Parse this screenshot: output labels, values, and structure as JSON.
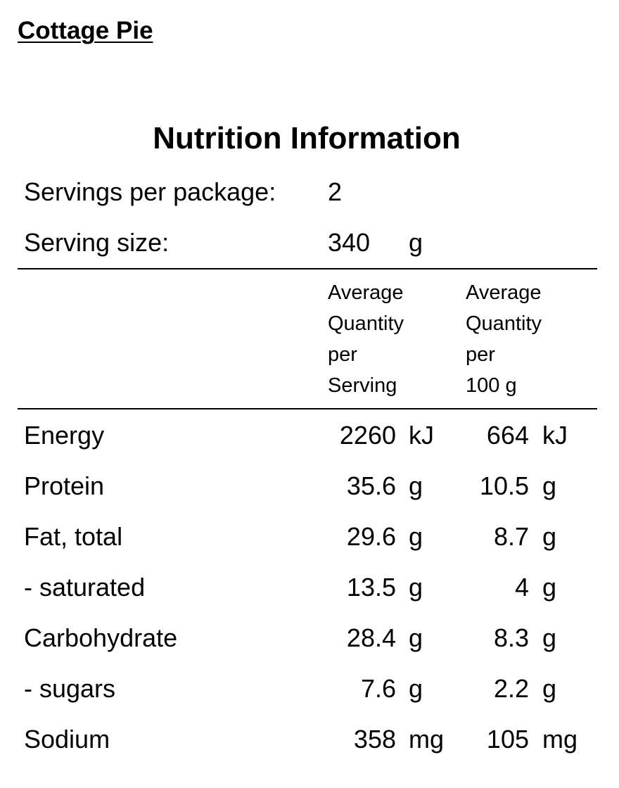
{
  "product_title": "Cottage Pie",
  "panel_title": "Nutrition Information",
  "servings": {
    "servings_label": "Servings per package:",
    "servings_value": "2",
    "size_label": "Serving size:",
    "size_value": "340",
    "size_unit": "g"
  },
  "columns": {
    "per_serving": [
      "Average",
      "Quantity",
      "per",
      "Serving"
    ],
    "per_100g": [
      "Average",
      "Quantity",
      "per",
      "100 g"
    ]
  },
  "rows": [
    {
      "name": "Energy",
      "per_serving": "2260",
      "per_serving_unit": "kJ",
      "per_100g": "664",
      "per_100g_unit": "kJ"
    },
    {
      "name": "Protein",
      "per_serving": "35.6",
      "per_serving_unit": "g",
      "per_100g": "10.5",
      "per_100g_unit": "g"
    },
    {
      "name": "Fat, total",
      "per_serving": "29.6",
      "per_serving_unit": "g",
      "per_100g": "8.7",
      "per_100g_unit": "g"
    },
    {
      "name": "- saturated",
      "per_serving": "13.5",
      "per_serving_unit": "g",
      "per_100g": "4",
      "per_100g_unit": "g"
    },
    {
      "name": "Carbohydrate",
      "per_serving": "28.4",
      "per_serving_unit": "g",
      "per_100g": "8.3",
      "per_100g_unit": "g"
    },
    {
      "name": "- sugars",
      "per_serving": "7.6",
      "per_serving_unit": "g",
      "per_100g": "2.2",
      "per_100g_unit": "g"
    },
    {
      "name": "Sodium",
      "per_serving": "358",
      "per_serving_unit": "mg",
      "per_100g": "105",
      "per_100g_unit": "mg"
    }
  ]
}
